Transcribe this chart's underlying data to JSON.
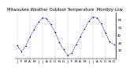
{
  "title": "Milwaukee Weather Outdoor Temperature  Monthly Low",
  "months": [
    "J",
    "F",
    "M",
    "A",
    "M",
    "J",
    "J",
    "A",
    "S",
    "O",
    "N",
    "D",
    "J",
    "F",
    "M",
    "A",
    "M",
    "J",
    "J",
    "A",
    "S",
    "O",
    "N",
    "D"
  ],
  "values": [
    27,
    19,
    26,
    38,
    47,
    57,
    63,
    62,
    54,
    44,
    31,
    22,
    14,
    17,
    28,
    38,
    48,
    58,
    64,
    63,
    55,
    43,
    32,
    28
  ],
  "line_color": "#0000EE",
  "marker_color": "#000000",
  "bg_color": "#ffffff",
  "ylim": [
    10,
    70
  ],
  "yticks": [
    20,
    30,
    40,
    50,
    60
  ],
  "grid_color": "#888888",
  "title_fontsize": 3.8,
  "tick_fontsize": 3.0,
  "vgrid_positions": [
    0,
    3,
    6,
    9,
    12,
    15,
    18,
    21
  ]
}
